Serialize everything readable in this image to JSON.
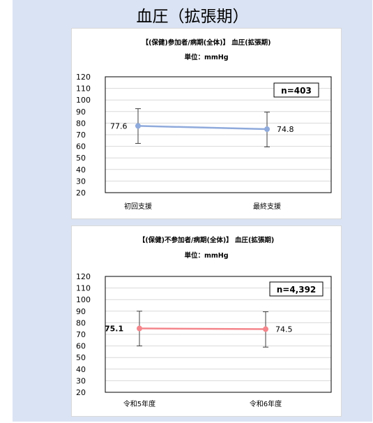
{
  "page_title": "血圧（拡張期）",
  "chart_data": [
    {
      "type": "line",
      "title": "【(保健)参加者/病期(全体)】 血圧(拡張期)",
      "subtitle": "単位：mmHg",
      "categories": [
        "初回支援",
        "最終支援"
      ],
      "series": [
        {
          "values": [
            77.6,
            74.8
          ]
        }
      ],
      "error_bars": [
        [
          62.5,
          92.5
        ],
        [
          59.5,
          89.5
        ]
      ],
      "data_labels": [
        "77.6",
        "74.8"
      ],
      "n_label": "n=403",
      "ylim": [
        20,
        120
      ],
      "yticks": [
        120,
        110,
        100,
        90,
        80,
        70,
        60,
        50,
        40,
        30,
        20
      ],
      "grid": true,
      "color": "#8faadc"
    },
    {
      "type": "line",
      "title": "【(保健)不参加者/病期(全体)】 血圧(拡張期)",
      "subtitle": "単位：mmHg",
      "categories": [
        "令和5年度",
        "令和6年度"
      ],
      "series": [
        {
          "values": [
            75.1,
            74.5
          ]
        }
      ],
      "error_bars": [
        [
          60.0,
          90.0
        ],
        [
          59.0,
          89.5
        ]
      ],
      "data_labels": [
        "75.1",
        "74.5"
      ],
      "n_label": "n=4,392",
      "ylim": [
        20,
        120
      ],
      "yticks": [
        120,
        110,
        100,
        90,
        80,
        70,
        60,
        50,
        40,
        30,
        20
      ],
      "grid": true,
      "color": "#f4868c"
    }
  ]
}
